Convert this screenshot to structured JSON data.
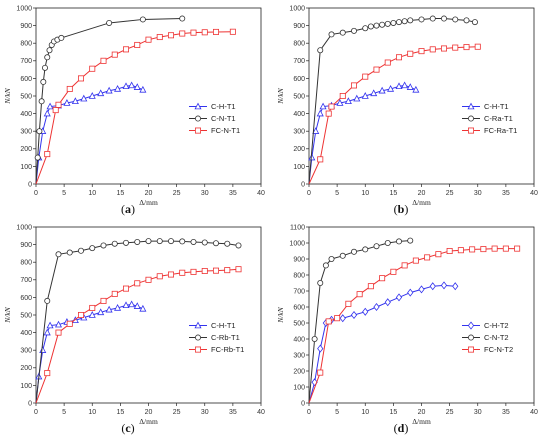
{
  "figure": {
    "colors": {
      "blue": "#3333ee",
      "black": "#333333",
      "red": "#ee3333"
    }
  },
  "chart_data": [
    {
      "type": "line",
      "panel_label": {
        "open": "(",
        "letter": "a",
        "close": ")"
      },
      "xlabel": "Δ/mm",
      "ylabel": "N/kN",
      "xlim": [
        0,
        40
      ],
      "ylim": [
        0,
        1000
      ],
      "xticks": [
        0,
        5,
        10,
        15,
        20,
        25,
        30,
        35,
        40
      ],
      "yticks": [
        0,
        100,
        200,
        300,
        400,
        500,
        600,
        700,
        800,
        900,
        1000
      ],
      "legend_position": "lower-right",
      "series": [
        {
          "name": "C-H-T1",
          "color": "#3333ee",
          "marker": "triangle",
          "points": [
            [
              0,
              0
            ],
            [
              0.5,
              150
            ],
            [
              1.2,
              300
            ],
            [
              2,
              400
            ],
            [
              2.5,
              440
            ],
            [
              4,
              445
            ],
            [
              5.5,
              460
            ],
            [
              7,
              470
            ],
            [
              8.5,
              485
            ],
            [
              10,
              500
            ],
            [
              11.5,
              515
            ],
            [
              13,
              530
            ],
            [
              14.5,
              540
            ],
            [
              16,
              555
            ],
            [
              17,
              560
            ],
            [
              18,
              550
            ],
            [
              19,
              535
            ]
          ]
        },
        {
          "name": "C-N-T1",
          "color": "#333333",
          "marker": "circle",
          "points": [
            [
              0,
              0
            ],
            [
              0.3,
              150
            ],
            [
              0.6,
              300
            ],
            [
              1,
              470
            ],
            [
              1.3,
              580
            ],
            [
              1.6,
              660
            ],
            [
              2,
              720
            ],
            [
              2.4,
              760
            ],
            [
              2.8,
              790
            ],
            [
              3.2,
              810
            ],
            [
              3.8,
              820
            ],
            [
              4.5,
              830
            ],
            [
              13,
              915
            ],
            [
              19,
              935
            ],
            [
              26,
              940
            ]
          ]
        },
        {
          "name": "FC-N-T1",
          "color": "#ee3333",
          "marker": "square",
          "points": [
            [
              0,
              0
            ],
            [
              2,
              170
            ],
            [
              3.5,
              420
            ],
            [
              4,
              450
            ],
            [
              6,
              540
            ],
            [
              8,
              600
            ],
            [
              10,
              655
            ],
            [
              12,
              700
            ],
            [
              14,
              735
            ],
            [
              16,
              765
            ],
            [
              18,
              790
            ],
            [
              20,
              820
            ],
            [
              22,
              835
            ],
            [
              24,
              845
            ],
            [
              26,
              855
            ],
            [
              28,
              860
            ],
            [
              30,
              862
            ],
            [
              32,
              864
            ],
            [
              35,
              865
            ]
          ]
        }
      ]
    },
    {
      "type": "line",
      "panel_label": {
        "open": "(",
        "letter": "b",
        "close": ")"
      },
      "xlabel": "Δ/mm",
      "ylabel": "N/kN",
      "xlim": [
        0,
        40
      ],
      "ylim": [
        0,
        1000
      ],
      "xticks": [
        0,
        5,
        10,
        15,
        20,
        25,
        30,
        35,
        40
      ],
      "yticks": [
        0,
        100,
        200,
        300,
        400,
        500,
        600,
        700,
        800,
        900,
        1000
      ],
      "legend_position": "lower-right",
      "series": [
        {
          "name": "C-H-T1",
          "color": "#3333ee",
          "marker": "triangle",
          "points": [
            [
              0,
              0
            ],
            [
              0.5,
              150
            ],
            [
              1.2,
              300
            ],
            [
              2,
              400
            ],
            [
              2.5,
              440
            ],
            [
              4,
              445
            ],
            [
              5.5,
              460
            ],
            [
              7,
              470
            ],
            [
              8.5,
              485
            ],
            [
              10,
              500
            ],
            [
              11.5,
              515
            ],
            [
              13,
              530
            ],
            [
              14.5,
              540
            ],
            [
              16,
              555
            ],
            [
              17,
              560
            ],
            [
              18,
              550
            ],
            [
              19,
              535
            ]
          ]
        },
        {
          "name": "C-Ra-T1",
          "color": "#333333",
          "marker": "circle",
          "points": [
            [
              0,
              0
            ],
            [
              2,
              760
            ],
            [
              4,
              850
            ],
            [
              6,
              860
            ],
            [
              8,
              870
            ],
            [
              10,
              885
            ],
            [
              11,
              895
            ],
            [
              12,
              900
            ],
            [
              13,
              905
            ],
            [
              14,
              910
            ],
            [
              15,
              915
            ],
            [
              16,
              920
            ],
            [
              17,
              925
            ],
            [
              18,
              930
            ],
            [
              20,
              935
            ],
            [
              22,
              940
            ],
            [
              24,
              940
            ],
            [
              26,
              935
            ],
            [
              28,
              930
            ],
            [
              29.5,
              920
            ]
          ]
        },
        {
          "name": "FC-Ra-T1",
          "color": "#ee3333",
          "marker": "square",
          "points": [
            [
              0,
              0
            ],
            [
              2,
              140
            ],
            [
              3.5,
              400
            ],
            [
              4,
              440
            ],
            [
              6,
              500
            ],
            [
              8,
              560
            ],
            [
              10,
              610
            ],
            [
              12,
              650
            ],
            [
              14,
              690
            ],
            [
              16,
              720
            ],
            [
              18,
              740
            ],
            [
              20,
              755
            ],
            [
              22,
              765
            ],
            [
              24,
              770
            ],
            [
              26,
              775
            ],
            [
              28,
              778
            ],
            [
              30,
              780
            ]
          ]
        }
      ]
    },
    {
      "type": "line",
      "panel_label": {
        "open": "(",
        "letter": "c",
        "close": ")"
      },
      "xlabel": "Δ/mm",
      "ylabel": "N/kN",
      "xlim": [
        0,
        40
      ],
      "ylim": [
        0,
        1000
      ],
      "xticks": [
        0,
        5,
        10,
        15,
        20,
        25,
        30,
        35,
        40
      ],
      "yticks": [
        0,
        100,
        200,
        300,
        400,
        500,
        600,
        700,
        800,
        900,
        1000
      ],
      "legend_position": "lower-right",
      "series": [
        {
          "name": "C-H-T1",
          "color": "#3333ee",
          "marker": "triangle",
          "points": [
            [
              0,
              0
            ],
            [
              0.5,
              150
            ],
            [
              1.2,
              300
            ],
            [
              2,
              400
            ],
            [
              2.5,
              440
            ],
            [
              4,
              445
            ],
            [
              5.5,
              460
            ],
            [
              7,
              470
            ],
            [
              8.5,
              485
            ],
            [
              10,
              500
            ],
            [
              11.5,
              515
            ],
            [
              13,
              530
            ],
            [
              14.5,
              540
            ],
            [
              16,
              555
            ],
            [
              17,
              560
            ],
            [
              18,
              550
            ],
            [
              19,
              535
            ]
          ]
        },
        {
          "name": "C-Rb-T1",
          "color": "#333333",
          "marker": "circle",
          "points": [
            [
              0,
              0
            ],
            [
              2,
              580
            ],
            [
              4,
              845
            ],
            [
              6,
              855
            ],
            [
              8,
              865
            ],
            [
              10,
              880
            ],
            [
              12,
              895
            ],
            [
              14,
              905
            ],
            [
              16,
              910
            ],
            [
              18,
              915
            ],
            [
              20,
              920
            ],
            [
              22,
              920
            ],
            [
              24,
              920
            ],
            [
              26,
              918
            ],
            [
              28,
              915
            ],
            [
              30,
              912
            ],
            [
              32,
              908
            ],
            [
              34,
              905
            ],
            [
              36,
              895
            ]
          ]
        },
        {
          "name": "FC-Rb-T1",
          "color": "#ee3333",
          "marker": "square",
          "points": [
            [
              0,
              0
            ],
            [
              2,
              170
            ],
            [
              4,
              400
            ],
            [
              6,
              450
            ],
            [
              8,
              500
            ],
            [
              10,
              540
            ],
            [
              12,
              580
            ],
            [
              14,
              620
            ],
            [
              16,
              650
            ],
            [
              18,
              680
            ],
            [
              20,
              700
            ],
            [
              22,
              720
            ],
            [
              24,
              730
            ],
            [
              26,
              740
            ],
            [
              28,
              745
            ],
            [
              30,
              750
            ],
            [
              32,
              752
            ],
            [
              34,
              755
            ],
            [
              36,
              760
            ]
          ]
        }
      ]
    },
    {
      "type": "line",
      "panel_label": {
        "open": "(",
        "letter": "d",
        "close": ")"
      },
      "xlabel": "Δ/mm",
      "ylabel": "N/kN",
      "xlim": [
        0,
        40
      ],
      "ylim": [
        0,
        1100
      ],
      "xticks": [
        0,
        5,
        10,
        15,
        20,
        25,
        30,
        35,
        40
      ],
      "yticks": [
        0,
        100,
        200,
        300,
        400,
        500,
        600,
        700,
        800,
        900,
        1000,
        1100
      ],
      "legend_position": "lower-right",
      "series": [
        {
          "name": "C-H-T2",
          "color": "#3333ee",
          "marker": "diamond",
          "points": [
            [
              0,
              0
            ],
            [
              1,
              130
            ],
            [
              2,
              340
            ],
            [
              3,
              500
            ],
            [
              4,
              520
            ],
            [
              6,
              530
            ],
            [
              8,
              550
            ],
            [
              10,
              570
            ],
            [
              12,
              600
            ],
            [
              14,
              630
            ],
            [
              16,
              660
            ],
            [
              18,
              690
            ],
            [
              20,
              710
            ],
            [
              22,
              730
            ],
            [
              24,
              735
            ],
            [
              26,
              730
            ]
          ]
        },
        {
          "name": "C-N-T2",
          "color": "#333333",
          "marker": "circle",
          "points": [
            [
              0,
              0
            ],
            [
              1,
              400
            ],
            [
              2,
              750
            ],
            [
              3,
              860
            ],
            [
              4,
              900
            ],
            [
              6,
              920
            ],
            [
              8,
              945
            ],
            [
              10,
              960
            ],
            [
              12,
              980
            ],
            [
              14,
              1000
            ],
            [
              16,
              1010
            ],
            [
              18,
              1015
            ]
          ]
        },
        {
          "name": "FC-N-T2",
          "color": "#ee3333",
          "marker": "square",
          "points": [
            [
              0,
              0
            ],
            [
              2,
              190
            ],
            [
              3.5,
              510
            ],
            [
              5,
              530
            ],
            [
              7,
              620
            ],
            [
              9,
              680
            ],
            [
              11,
              730
            ],
            [
              13,
              780
            ],
            [
              15,
              820
            ],
            [
              17,
              860
            ],
            [
              19,
              890
            ],
            [
              21,
              910
            ],
            [
              23,
              930
            ],
            [
              25,
              950
            ],
            [
              27,
              955
            ],
            [
              29,
              960
            ],
            [
              31,
              962
            ],
            [
              33,
              965
            ],
            [
              35,
              965
            ],
            [
              37,
              965
            ]
          ]
        }
      ]
    }
  ]
}
